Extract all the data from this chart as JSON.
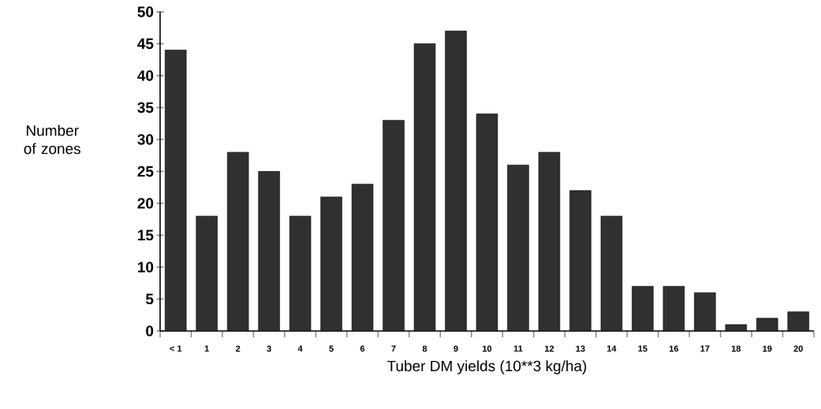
{
  "chart_data": {
    "type": "bar",
    "xlabel": "Tuber DM yields (10**3 kg/ha)",
    "ylabel": "Number of zones",
    "categories": [
      "< 1",
      "1",
      "2",
      "3",
      "4",
      "5",
      "6",
      "7",
      "8",
      "9",
      "10",
      "11",
      "12",
      "13",
      "14",
      "15",
      "16",
      "17",
      "18",
      "19",
      "20"
    ],
    "values": [
      44,
      18,
      28,
      25,
      18,
      21,
      23,
      33,
      45,
      47,
      34,
      26,
      28,
      22,
      18,
      7,
      7,
      6,
      1,
      2,
      3
    ],
    "color": "#303030",
    "ylim": [
      0,
      50
    ],
    "yticks": [
      0,
      5,
      10,
      15,
      20,
      25,
      30,
      35,
      40,
      45,
      50
    ]
  }
}
